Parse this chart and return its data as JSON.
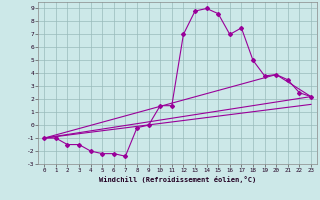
{
  "xlabel": "Windchill (Refroidissement éolien,°C)",
  "background_color": "#cce8e8",
  "grid_color": "#99bbbb",
  "line_color": "#990099",
  "xlim": [
    -0.5,
    23.5
  ],
  "ylim": [
    -3.0,
    9.5
  ],
  "xticks": [
    0,
    1,
    2,
    3,
    4,
    5,
    6,
    7,
    8,
    9,
    10,
    11,
    12,
    13,
    14,
    15,
    16,
    17,
    18,
    19,
    20,
    21,
    22,
    23
  ],
  "yticks": [
    -3,
    -2,
    -1,
    0,
    1,
    2,
    3,
    4,
    5,
    6,
    7,
    8,
    9
  ],
  "curve_x": [
    0,
    1,
    2,
    3,
    4,
    5,
    6,
    7,
    8,
    9,
    10,
    11,
    12,
    13,
    14,
    15,
    16,
    17,
    18,
    19,
    20,
    21,
    22,
    23
  ],
  "curve_y": [
    -1,
    -1,
    -1.5,
    -1.5,
    -2.0,
    -2.2,
    -2.2,
    -2.4,
    -0.2,
    0.0,
    1.5,
    1.5,
    7.0,
    8.8,
    9.0,
    8.6,
    7.0,
    7.5,
    5.0,
    3.8,
    3.9,
    3.5,
    2.5,
    2.2
  ],
  "line2_x": [
    0,
    20,
    23
  ],
  "line2_y": [
    -1.0,
    3.9,
    2.2
  ],
  "line3_x": [
    0,
    23
  ],
  "line3_y": [
    -1.0,
    2.2
  ],
  "line4_x": [
    0,
    23
  ],
  "line4_y": [
    -1.0,
    1.6
  ]
}
